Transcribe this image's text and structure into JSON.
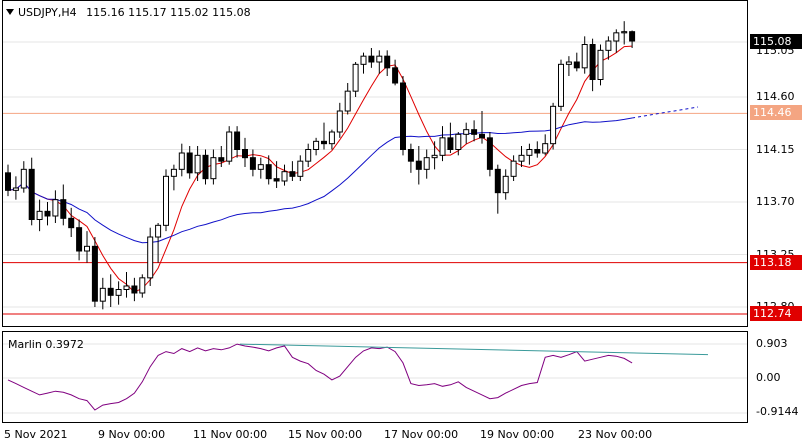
{
  "header": {
    "symbol": "USDJPY,H4",
    "ohlc": "115.16 115.17 115.02 115.08",
    "menu_icon": "triangle-down-icon"
  },
  "price_axis": {
    "ticks": [
      "114.60",
      "114.15",
      "113.70",
      "113.25",
      "112.80"
    ],
    "current_price": "115.08",
    "hidden_tick": "115.05"
  },
  "levels": [
    {
      "label": "114.46",
      "color": "#f4a582",
      "text_color": "#ffffff"
    },
    {
      "label": "113.18",
      "color": "#e00000",
      "text_color": "#ffffff"
    },
    {
      "label": "112.74",
      "color": "#e00000",
      "text_color": "#ffffff"
    }
  ],
  "indicator": {
    "label": "Marlin 0.3972",
    "ticks": [
      "0.903",
      "0.00",
      "-0.9144"
    ]
  },
  "time_axis": [
    "5 Nov 2021",
    "9 Nov 00:00",
    "11 Nov 00:00",
    "15 Nov 00:00",
    "17 Nov 00:00",
    "19 Nov 00:00",
    "23 Nov 00:00"
  ],
  "colors": {
    "candle": "#000000",
    "fast_ma": "#e00000",
    "slow_ma": "#1010c8",
    "indicator_line": "#800080",
    "indicator_trend": "#3a9a9a",
    "grid": "#e4e4e4",
    "border": "#000000"
  },
  "candles": [
    [
      113.95,
      114.02,
      113.75,
      113.8
    ],
    [
      113.8,
      113.92,
      113.72,
      113.82
    ],
    [
      113.82,
      114.05,
      113.78,
      113.98
    ],
    [
      113.98,
      114.08,
      113.5,
      113.55
    ],
    [
      113.55,
      113.72,
      113.45,
      113.62
    ],
    [
      113.62,
      113.7,
      113.5,
      113.58
    ],
    [
      113.58,
      113.8,
      113.52,
      113.72
    ],
    [
      113.72,
      113.85,
      113.5,
      113.56
    ],
    [
      113.56,
      113.65,
      113.4,
      113.48
    ],
    [
      113.48,
      113.55,
      113.2,
      113.28
    ],
    [
      113.28,
      113.45,
      113.18,
      113.32
    ],
    [
      113.32,
      113.4,
      112.8,
      112.85
    ],
    [
      112.85,
      113.05,
      112.78,
      112.96
    ],
    [
      112.96,
      113.08,
      112.8,
      112.9
    ],
    [
      112.9,
      113.02,
      112.82,
      112.95
    ],
    [
      112.95,
      113.1,
      112.88,
      112.98
    ],
    [
      112.98,
      113.05,
      112.85,
      112.92
    ],
    [
      112.92,
      113.08,
      112.88,
      113.05
    ],
    [
      113.05,
      113.48,
      112.98,
      113.4
    ],
    [
      113.4,
      113.52,
      113.18,
      113.5
    ],
    [
      113.5,
      113.98,
      113.45,
      113.92
    ],
    [
      113.92,
      114.02,
      113.8,
      113.98
    ],
    [
      113.98,
      114.2,
      113.92,
      114.12
    ],
    [
      114.12,
      114.18,
      113.9,
      113.95
    ],
    [
      113.95,
      114.18,
      113.88,
      114.1
    ],
    [
      114.1,
      114.15,
      113.85,
      113.9
    ],
    [
      113.9,
      114.15,
      113.85,
      114.08
    ],
    [
      114.08,
      114.18,
      114.0,
      114.05
    ],
    [
      114.05,
      114.35,
      114.02,
      114.3
    ],
    [
      114.3,
      114.35,
      114.08,
      114.15
    ],
    [
      114.15,
      114.25,
      114.0,
      114.08
    ],
    [
      114.08,
      114.15,
      113.92,
      113.98
    ],
    [
      113.98,
      114.08,
      113.9,
      114.02
    ],
    [
      114.02,
      114.1,
      113.85,
      113.9
    ],
    [
      113.9,
      114.05,
      113.82,
      113.88
    ],
    [
      113.88,
      114.02,
      113.84,
      113.96
    ],
    [
      113.96,
      114.05,
      113.88,
      113.92
    ],
    [
      113.92,
      114.1,
      113.88,
      114.05
    ],
    [
      114.05,
      114.2,
      114.0,
      114.15
    ],
    [
      114.15,
      114.25,
      114.1,
      114.22
    ],
    [
      114.22,
      114.38,
      114.15,
      114.2
    ],
    [
      114.2,
      114.32,
      114.15,
      114.3
    ],
    [
      114.3,
      114.55,
      114.25,
      114.48
    ],
    [
      114.48,
      114.72,
      114.45,
      114.65
    ],
    [
      114.65,
      114.9,
      114.6,
      114.88
    ],
    [
      114.88,
      114.98,
      114.8,
      114.95
    ],
    [
      114.95,
      115.02,
      114.85,
      114.9
    ],
    [
      114.9,
      115.0,
      114.8,
      114.95
    ],
    [
      114.95,
      115.0,
      114.78,
      114.85
    ],
    [
      114.85,
      114.92,
      114.7,
      114.72
    ],
    [
      114.72,
      114.78,
      114.1,
      114.15
    ],
    [
      114.15,
      114.2,
      113.95,
      114.05
    ],
    [
      114.05,
      114.18,
      113.85,
      113.98
    ],
    [
      113.98,
      114.15,
      113.9,
      114.08
    ],
    [
      114.08,
      114.22,
      113.98,
      114.1
    ],
    [
      114.1,
      114.35,
      114.05,
      114.25
    ],
    [
      114.25,
      114.38,
      114.12,
      114.15
    ],
    [
      114.15,
      114.3,
      114.1,
      114.28
    ],
    [
      114.28,
      114.38,
      114.2,
      114.32
    ],
    [
      114.32,
      114.4,
      114.22,
      114.28
    ],
    [
      114.28,
      114.48,
      114.2,
      114.25
    ],
    [
      114.25,
      114.3,
      113.92,
      113.98
    ],
    [
      113.98,
      114.02,
      113.6,
      113.78
    ],
    [
      113.78,
      113.98,
      113.72,
      113.92
    ],
    [
      113.92,
      114.1,
      113.88,
      114.05
    ],
    [
      114.05,
      114.18,
      114.0,
      114.1
    ],
    [
      114.1,
      114.2,
      114.02,
      114.15
    ],
    [
      114.15,
      114.22,
      114.08,
      114.12
    ],
    [
      114.12,
      114.28,
      114.1,
      114.2
    ],
    [
      114.2,
      114.55,
      114.15,
      114.52
    ],
    [
      114.52,
      114.92,
      114.48,
      114.88
    ],
    [
      114.88,
      114.95,
      114.78,
      114.9
    ],
    [
      114.9,
      114.98,
      114.82,
      114.85
    ],
    [
      114.85,
      115.12,
      114.8,
      115.05
    ],
    [
      115.05,
      115.1,
      114.65,
      114.75
    ],
    [
      114.75,
      115.05,
      114.7,
      115.0
    ],
    [
      115.0,
      115.12,
      114.92,
      115.08
    ],
    [
      115.08,
      115.18,
      114.98,
      115.15
    ],
    [
      115.15,
      115.25,
      115.05,
      115.16
    ],
    [
      115.16,
      115.17,
      115.02,
      115.08
    ]
  ],
  "indicator_values": [
    -0.05,
    -0.15,
    -0.25,
    -0.35,
    -0.45,
    -0.4,
    -0.35,
    -0.38,
    -0.45,
    -0.55,
    -0.6,
    -0.85,
    -0.72,
    -0.68,
    -0.65,
    -0.55,
    -0.4,
    -0.1,
    0.3,
    0.6,
    0.7,
    0.65,
    0.78,
    0.7,
    0.8,
    0.72,
    0.78,
    0.75,
    0.8,
    0.9,
    0.85,
    0.82,
    0.78,
    0.72,
    0.8,
    0.85,
    0.55,
    0.45,
    0.38,
    0.2,
    0.1,
    -0.05,
    0.05,
    0.3,
    0.55,
    0.72,
    0.8,
    0.78,
    0.82,
    0.7,
    0.4,
    -0.15,
    -0.2,
    -0.18,
    -0.15,
    -0.22,
    -0.18,
    -0.1,
    -0.25,
    -0.35,
    -0.45,
    -0.55,
    -0.52,
    -0.4,
    -0.3,
    -0.2,
    -0.15,
    -0.12,
    0.55,
    0.6,
    0.55,
    0.62,
    0.7,
    0.45,
    0.5,
    0.55,
    0.6,
    0.58,
    0.52,
    0.4
  ]
}
